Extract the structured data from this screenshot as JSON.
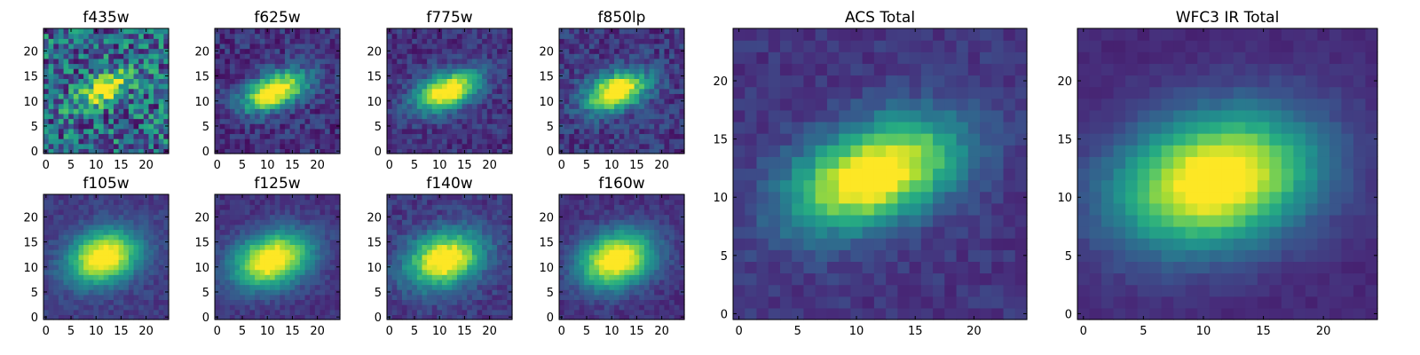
{
  "figure": {
    "colormap": "viridis",
    "grid": false,
    "legend": "none"
  },
  "chart_data": [
    {
      "type": "heatmap",
      "title": "f435w",
      "xlim": [
        0,
        24
      ],
      "ylim": [
        0,
        24
      ],
      "xticks": [
        "0",
        "5",
        "10",
        "15",
        "20"
      ],
      "yticks": [
        "0",
        "5",
        "10",
        "15",
        "20"
      ],
      "source": {
        "cx": 11.5,
        "cy": 12.5,
        "sx": 4.0,
        "sy": 1.7,
        "angle_deg": 28,
        "background": 0.35,
        "noise": 0.32
      }
    },
    {
      "type": "heatmap",
      "title": "f625w",
      "xlim": [
        0,
        24
      ],
      "ylim": [
        0,
        24
      ],
      "xticks": [
        "0",
        "5",
        "10",
        "15",
        "20"
      ],
      "yticks": [
        "0",
        "5",
        "10",
        "15",
        "20"
      ],
      "source": {
        "cx": 11.5,
        "cy": 12.0,
        "sx": 4.6,
        "sy": 2.3,
        "angle_deg": 22,
        "background": 0.15,
        "noise": 0.12
      }
    },
    {
      "type": "heatmap",
      "title": "f775w",
      "xlim": [
        0,
        24
      ],
      "ylim": [
        0,
        24
      ],
      "xticks": [
        "0",
        "5",
        "10",
        "15",
        "20"
      ],
      "yticks": [
        "0",
        "5",
        "10",
        "15",
        "20"
      ],
      "source": {
        "cx": 11.5,
        "cy": 12.0,
        "sx": 4.6,
        "sy": 2.4,
        "angle_deg": 22,
        "background": 0.15,
        "noise": 0.1
      }
    },
    {
      "type": "heatmap",
      "title": "f850lp",
      "xlim": [
        0,
        24
      ],
      "ylim": [
        0,
        24
      ],
      "xticks": [
        "0",
        "5",
        "10",
        "15",
        "20"
      ],
      "yticks": [
        "0",
        "5",
        "10",
        "15",
        "20"
      ],
      "source": {
        "cx": 11.0,
        "cy": 12.0,
        "sx": 4.5,
        "sy": 2.5,
        "angle_deg": 20,
        "background": 0.17,
        "noise": 0.12
      }
    },
    {
      "type": "heatmap",
      "title": "ACS Total",
      "xlim": [
        0,
        24
      ],
      "ylim": [
        0,
        24
      ],
      "xticks": [
        "0",
        "5",
        "10",
        "15",
        "20"
      ],
      "yticks": [
        "0",
        "5",
        "10",
        "15",
        "20"
      ],
      "source": {
        "cx": 11.5,
        "cy": 12.0,
        "sx": 5.2,
        "sy": 2.8,
        "angle_deg": 22,
        "background": 0.16,
        "noise": 0.06
      }
    },
    {
      "type": "heatmap",
      "title": "WFC3 IR Total",
      "xlim": [
        0,
        24
      ],
      "ylim": [
        0,
        24
      ],
      "xticks": [
        "0",
        "5",
        "10",
        "15",
        "20"
      ],
      "yticks": [
        "0",
        "5",
        "10",
        "15",
        "20"
      ],
      "source": {
        "cx": 11.0,
        "cy": 11.5,
        "sx": 5.8,
        "sy": 3.8,
        "angle_deg": 15,
        "background": 0.12,
        "noise": 0.03
      }
    },
    {
      "type": "heatmap",
      "title": "f105w",
      "xlim": [
        0,
        24
      ],
      "ylim": [
        0,
        24
      ],
      "xticks": [
        "0",
        "5",
        "10",
        "15",
        "20"
      ],
      "yticks": [
        "0",
        "5",
        "10",
        "15",
        "20"
      ],
      "source": {
        "cx": 11.5,
        "cy": 12.0,
        "sx": 5.0,
        "sy": 3.5,
        "angle_deg": 18,
        "background": 0.18,
        "noise": 0.06
      }
    },
    {
      "type": "heatmap",
      "title": "f125w",
      "xlim": [
        0,
        24
      ],
      "ylim": [
        0,
        24
      ],
      "xticks": [
        "0",
        "5",
        "10",
        "15",
        "20"
      ],
      "yticks": [
        "0",
        "5",
        "10",
        "15",
        "20"
      ],
      "source": {
        "cx": 11.0,
        "cy": 11.5,
        "sx": 5.5,
        "sy": 3.6,
        "angle_deg": 18,
        "background": 0.15,
        "noise": 0.06
      }
    },
    {
      "type": "heatmap",
      "title": "f140w",
      "xlim": [
        0,
        24
      ],
      "ylim": [
        0,
        24
      ],
      "xticks": [
        "0",
        "5",
        "10",
        "15",
        "20"
      ],
      "yticks": [
        "0",
        "5",
        "10",
        "15",
        "20"
      ],
      "source": {
        "cx": 11.0,
        "cy": 11.5,
        "sx": 5.3,
        "sy": 3.6,
        "angle_deg": 18,
        "background": 0.17,
        "noise": 0.08
      }
    },
    {
      "type": "heatmap",
      "title": "f160w",
      "xlim": [
        0,
        24
      ],
      "ylim": [
        0,
        24
      ],
      "xticks": [
        "0",
        "5",
        "10",
        "15",
        "20"
      ],
      "yticks": [
        "0",
        "5",
        "10",
        "15",
        "20"
      ],
      "source": {
        "cx": 11.0,
        "cy": 11.5,
        "sx": 5.3,
        "sy": 3.7,
        "angle_deg": 18,
        "background": 0.14,
        "noise": 0.06
      }
    }
  ]
}
